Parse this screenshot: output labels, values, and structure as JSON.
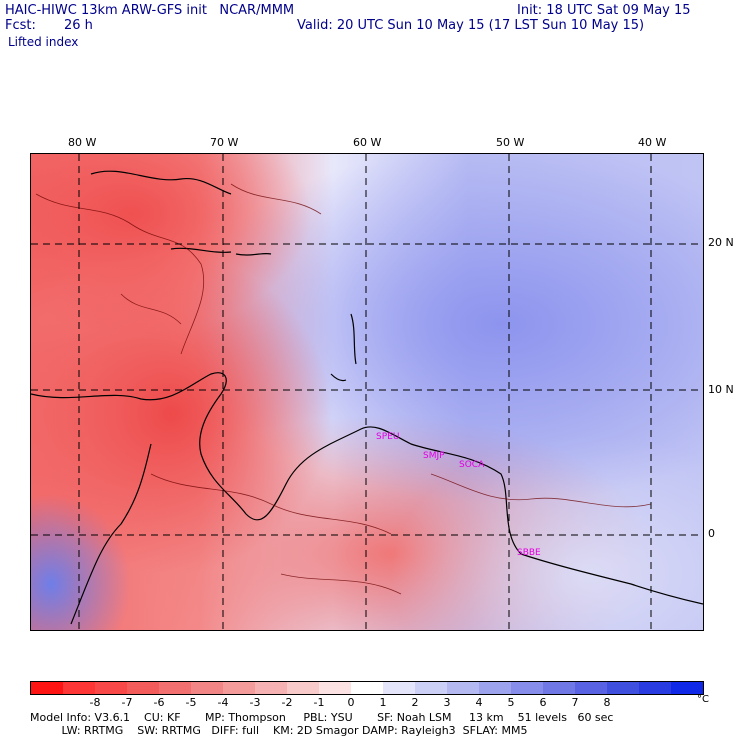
{
  "header": {
    "model_title": "HAIC-HIWC 13km ARW-GFS init   NCAR/MMM",
    "init": "Init: 18 UTC Sat 09 May 15",
    "fcst_label": "Fcst:",
    "fcst_value": "26 h",
    "valid": "Valid: 20 UTC Sun 10 May 15 (17 LST Sun 10 May 15)",
    "field": "Lifted index"
  },
  "map": {
    "longitudes": [
      "80 W",
      "70 W",
      "60 W",
      "50 W",
      "40 W"
    ],
    "latitudes": [
      "20 N",
      "10 N",
      "0"
    ],
    "stations": [
      "SPEU",
      "SMJP",
      "SOCA",
      "SBBE"
    ]
  },
  "colorbar": {
    "colors": [
      "#ff1414",
      "#ff3636",
      "#f84848",
      "#f45c5c",
      "#f27070",
      "#f28686",
      "#f49c9c",
      "#f6b2b2",
      "#f8caca",
      "#fce2e2",
      "#ffffff",
      "#e4e4fa",
      "#cdd0f6",
      "#b5b9f2",
      "#9ea3ee",
      "#878dea",
      "#7078e6",
      "#5862e2",
      "#4050de",
      "#283ce2",
      "#1028e8"
    ],
    "ticks": [
      "-8",
      "-7",
      "-6",
      "-5",
      "-4",
      "-3",
      "-2",
      "-1",
      "0",
      "1",
      "2",
      "3",
      "4",
      "5",
      "6",
      "7",
      "8"
    ],
    "unit": "°C"
  },
  "footer": {
    "line1": "Model Info: V3.6.1    CU: KF       MP: Thompson     PBL: YSU       SF: Noah LSM     13 km    51 levels   60 sec",
    "line2": "         LW: RRTMG    SW: RRTMG   DIFF: full    KM: 2D Smagor DAMP: Rayleigh3  SFLAY: MM5"
  }
}
